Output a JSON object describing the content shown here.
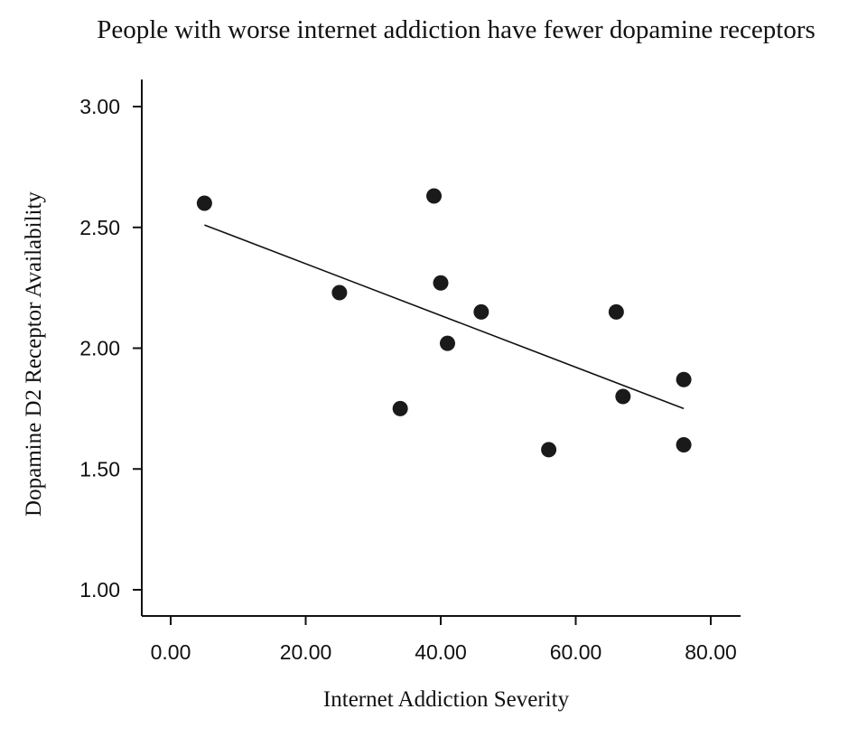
{
  "chart_data": {
    "type": "scatter",
    "title": "People with worse internet addiction have fewer dopamine receptors",
    "xlabel": "Internet Addiction Severity",
    "ylabel": "Dopamine D2 Receptor Availability",
    "xlim": [
      -4,
      84
    ],
    "ylim": [
      0.9,
      3.1
    ],
    "x_ticks": [
      0,
      20,
      40,
      60,
      80
    ],
    "x_tick_labels": [
      "0.00",
      "20.00",
      "40.00",
      "60.00",
      "80.00"
    ],
    "y_ticks": [
      1.0,
      1.5,
      2.0,
      2.5,
      3.0
    ],
    "y_tick_labels": [
      "1.00",
      "1.50",
      "2.00",
      "2.50",
      "3.00"
    ],
    "grid": false,
    "points": [
      {
        "x": 5,
        "y": 2.6
      },
      {
        "x": 25,
        "y": 2.23
      },
      {
        "x": 34,
        "y": 1.75
      },
      {
        "x": 39,
        "y": 2.63
      },
      {
        "x": 40,
        "y": 2.27
      },
      {
        "x": 41,
        "y": 2.02
      },
      {
        "x": 46,
        "y": 2.15
      },
      {
        "x": 56,
        "y": 1.58
      },
      {
        "x": 66,
        "y": 2.15
      },
      {
        "x": 67,
        "y": 1.8
      },
      {
        "x": 76,
        "y": 1.87
      },
      {
        "x": 76,
        "y": 1.6
      }
    ],
    "trendline": {
      "x": [
        5,
        76
      ],
      "y": [
        2.51,
        1.75
      ]
    }
  }
}
